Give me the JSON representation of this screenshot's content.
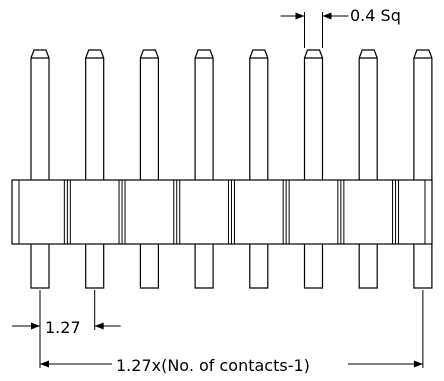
{
  "drawing": {
    "pin_count": 8,
    "labels": {
      "pin_size": "0.4 Sq",
      "pitch": "1.27",
      "overall_length": "1.27x(No. of contacts-1)"
    }
  }
}
